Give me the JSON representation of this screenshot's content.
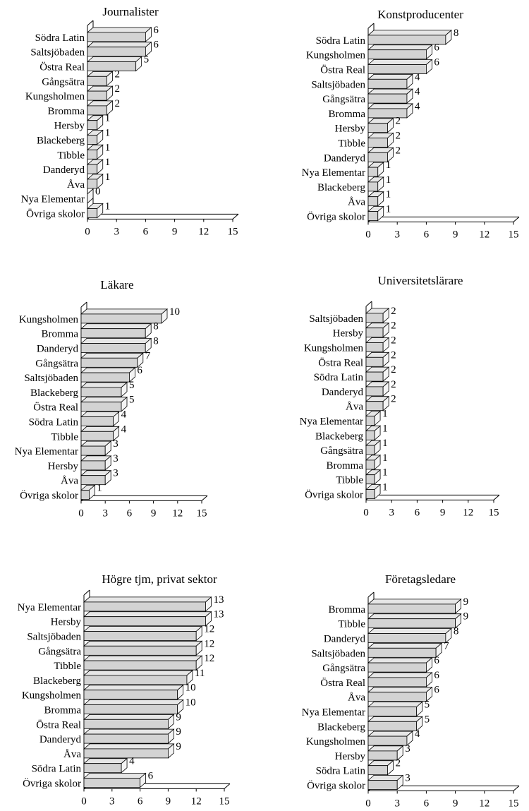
{
  "chart_data": [
    {
      "type": "bar",
      "title": "Journalister",
      "categories": [
        "Södra Latin",
        "Saltsjöbaden",
        "Östra Real",
        "Gångsätra",
        "Kungsholmen",
        "Bromma",
        "Hersby",
        "Blackeberg",
        "Tibble",
        "Danderyd",
        "Åva",
        "Nya Elementar",
        "Övriga skolor"
      ],
      "values": [
        6,
        6,
        5,
        2,
        2,
        2,
        1,
        1,
        1,
        1,
        1,
        0,
        1
      ],
      "xlim": [
        0,
        15
      ],
      "xticks": [
        "0",
        "3",
        "6",
        "9",
        "12",
        "15"
      ],
      "orientation": "horizontal",
      "style": "3d",
      "bar_color": "#d3d3d3"
    },
    {
      "type": "bar",
      "title": "Konstproducenter",
      "categories": [
        "Södra Latin",
        "Kungsholmen",
        "Östra Real",
        "Saltsjöbaden",
        "Gångsätra",
        "Bromma",
        "Hersby",
        "Tibble",
        "Danderyd",
        "Nya Elementar",
        "Blackeberg",
        "Åva",
        "Övriga skolor"
      ],
      "values": [
        8,
        6,
        6,
        4,
        4,
        4,
        2,
        2,
        2,
        1,
        1,
        1,
        1
      ],
      "xlim": [
        0,
        15
      ],
      "xticks": [
        "0",
        "3",
        "6",
        "9",
        "12",
        "15"
      ],
      "orientation": "horizontal",
      "style": "3d",
      "bar_color": "#d3d3d3"
    },
    {
      "type": "bar",
      "title": "Läkare",
      "categories": [
        "Kungsholmen",
        "Bromma",
        "Danderyd",
        "Gångsätra",
        "Saltsjöbaden",
        "Blackeberg",
        "Östra Real",
        "Södra Latin",
        "Tibble",
        "Nya Elementar",
        "Hersby",
        "Åva",
        "Övriga skolor"
      ],
      "values": [
        10,
        8,
        8,
        7,
        6,
        5,
        5,
        4,
        4,
        3,
        3,
        3,
        1
      ],
      "xlim": [
        0,
        15
      ],
      "xticks": [
        "0",
        "3",
        "6",
        "9",
        "12",
        "15"
      ],
      "orientation": "horizontal",
      "style": "3d",
      "bar_color": "#d3d3d3"
    },
    {
      "type": "bar",
      "title": "Universitetslärare",
      "categories": [
        "Saltsjöbaden",
        "Hersby",
        "Kungsholmen",
        "Östra Real",
        "Södra Latin",
        "Danderyd",
        "Åva",
        "Nya Elementar",
        "Blackeberg",
        "Gångsätra",
        "Bromma",
        "Tibble",
        "Övriga skolor"
      ],
      "values": [
        2,
        2,
        2,
        2,
        2,
        2,
        2,
        1,
        1,
        1,
        1,
        1,
        1
      ],
      "xlim": [
        0,
        15
      ],
      "xticks": [
        "0",
        "3",
        "6",
        "9",
        "12",
        "15"
      ],
      "orientation": "horizontal",
      "style": "3d",
      "bar_color": "#d3d3d3"
    },
    {
      "type": "bar",
      "title": "Högre tjm, privat sektor",
      "categories": [
        "Nya Elementar",
        "Hersby",
        "Saltsjöbaden",
        "Gångsätra",
        "Tibble",
        "Blackeberg",
        "Kungsholmen",
        "Bromma",
        "Östra Real",
        "Danderyd",
        "Åva",
        "Södra Latin",
        "Övriga skolor"
      ],
      "values": [
        13,
        13,
        12,
        12,
        12,
        11,
        10,
        10,
        9,
        9,
        9,
        4,
        6
      ],
      "xlim": [
        0,
        15
      ],
      "xticks": [
        "0",
        "3",
        "6",
        "9",
        "12",
        "15"
      ],
      "orientation": "horizontal",
      "style": "3d",
      "bar_color": "#d3d3d3"
    },
    {
      "type": "bar",
      "title": "Företagsledare",
      "categories": [
        "Bromma",
        "Tibble",
        "Danderyd",
        "Saltsjöbaden",
        "Gångsätra",
        "Östra Real",
        "Åva",
        "Nya Elementar",
        "Blackeberg",
        "Kungsholmen",
        "Hersby",
        "Södra Latin",
        "Övriga skolor"
      ],
      "values": [
        9,
        9,
        8,
        7,
        6,
        6,
        6,
        5,
        5,
        4,
        3,
        2,
        3
      ],
      "xlim": [
        0,
        15
      ],
      "xticks": [
        "0",
        "3",
        "6",
        "9",
        "12",
        "15"
      ],
      "orientation": "horizontal",
      "style": "3d",
      "bar_color": "#d3d3d3"
    }
  ]
}
